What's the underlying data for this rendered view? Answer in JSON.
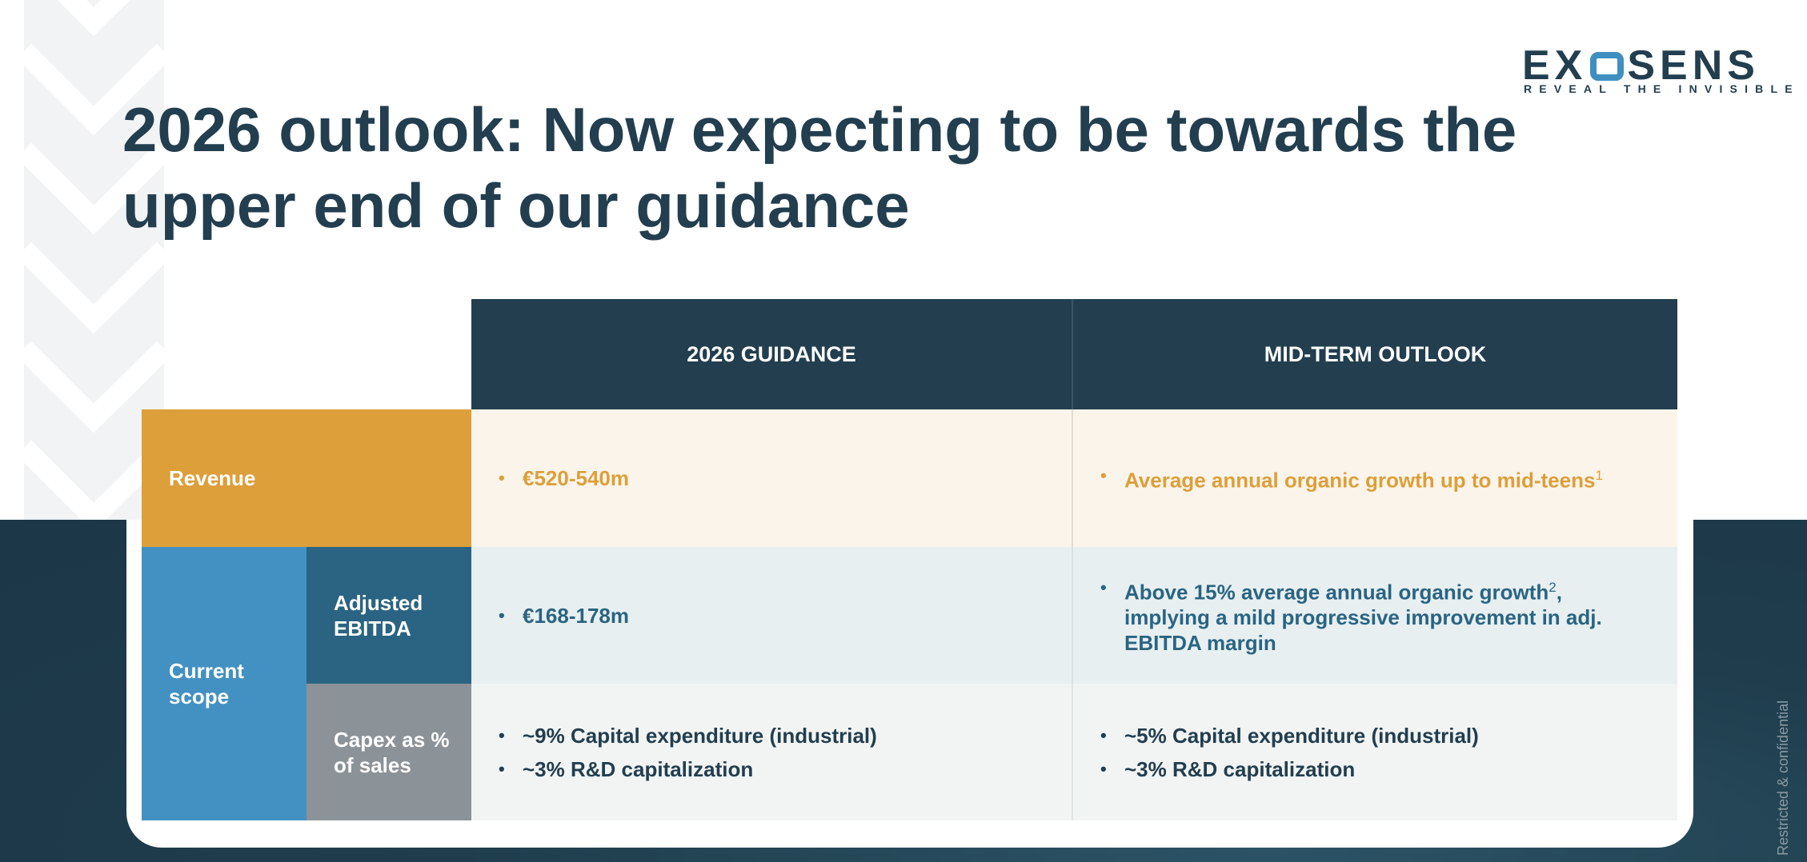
{
  "logo": {
    "word_left": "EX",
    "word_right": "SENS",
    "tagline": "REVEAL THE INVISIBLE"
  },
  "title": "2026 outlook: Now expecting to be towards the upper end of our guidance",
  "table": {
    "headers": [
      "2026 GUIDANCE",
      "MID-TERM OUTLOOK"
    ],
    "rows": {
      "revenue": {
        "label": "Revenue",
        "guidance": [
          "€520-540m"
        ],
        "outlook_text": "Average annual organic growth up to mid-teens",
        "outlook_sup": "1"
      },
      "current_scope_label": "Current scope",
      "ebitda": {
        "label": "Adjusted EBITDA",
        "guidance": [
          "€168-178m"
        ],
        "outlook_pre": "Above 15% average annual organic growth",
        "outlook_sup": "2",
        "outlook_post": ", implying a mild progressive improvement in adj. EBITDA margin"
      },
      "capex": {
        "label": "Capex as % of sales",
        "guidance": [
          "~9% Capital expenditure (industrial)",
          "~3% R&D capitalization"
        ],
        "outlook": [
          "~5% Capital expenditure (industrial)",
          "~3% R&D capitalization"
        ]
      }
    }
  },
  "footer_note": "Restricted & confidential",
  "colors": {
    "navy": "#223e4f",
    "orange": "#dc9f3a",
    "light_blue": "#4391c2",
    "mid_blue": "#2a6482",
    "grey": "#8c9398",
    "cream": "#fbf4ea",
    "pale_blue": "#e7eff1",
    "pale_grey": "#f2f4f4"
  }
}
